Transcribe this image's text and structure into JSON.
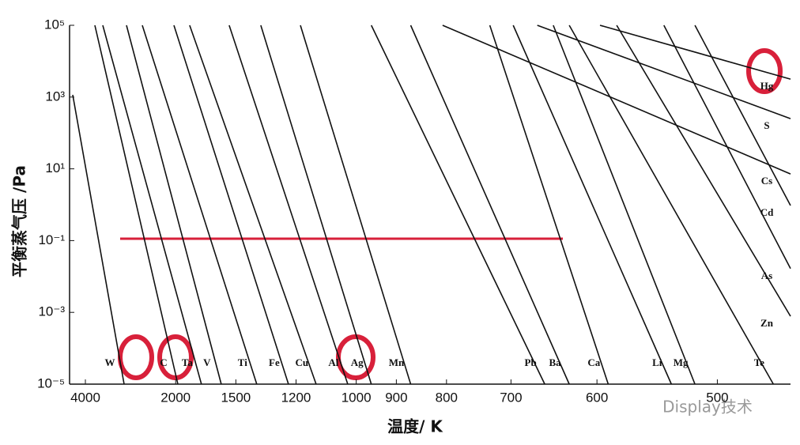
{
  "chart_data": {
    "type": "line",
    "x_label": "温度/ K",
    "y_label": "平衡蒸气压 /Pa",
    "watermark": "Display技术",
    "x_scale": "reciprocal",
    "y_scale": "log",
    "color": "#111111",
    "xlim": [
      4850,
      454
    ],
    "ylim": [
      1e-05,
      100000
    ],
    "xticks": [
      4000,
      2000,
      1500,
      1200,
      1000,
      900,
      800,
      700,
      600,
      500
    ],
    "yticks": [
      {
        "value": 100000,
        "label": "10⁵"
      },
      {
        "value": 1000,
        "label": "10³"
      },
      {
        "value": 10,
        "label": "10¹"
      },
      {
        "value": 0.1,
        "label": "10⁻¹"
      },
      {
        "value": 0.001,
        "label": "10⁻³"
      },
      {
        "value": 1e-05,
        "label": "10⁻⁵"
      }
    ],
    "series": [
      {
        "name": "W",
        "x": [
          4651,
          2800
        ],
        "values": [
          1150,
          1e-05
        ]
      },
      {
        "name": "C",
        "x": [
          3620,
          1976
        ],
        "values": [
          100000,
          1e-05
        ]
      },
      {
        "name": "Ta",
        "x": [
          3355,
          1750
        ],
        "values": [
          100000,
          1e-05
        ]
      },
      {
        "name": "V",
        "x": [
          2749,
          1597
        ],
        "values": [
          100000,
          1e-05
        ]
      },
      {
        "name": "Ti",
        "x": [
          2454,
          1380
        ],
        "values": [
          100000,
          1e-05
        ]
      },
      {
        "name": "Fe",
        "x": [
          2020,
          1231
        ],
        "values": [
          100000,
          1e-05
        ]
      },
      {
        "name": "Cu",
        "x": [
          1856,
          1125
        ],
        "values": [
          100000,
          1e-05
        ]
      },
      {
        "name": "Al",
        "x": [
          1543,
          1024
        ],
        "values": [
          100000,
          1e-05
        ]
      },
      {
        "name": "Ag",
        "x": [
          1359,
          960
        ],
        "values": [
          100000,
          1e-05
        ]
      },
      {
        "name": "Mn",
        "x": [
          1183,
          869
        ],
        "values": [
          100000,
          1e-05
        ]
      },
      {
        "name": "Pb",
        "x": [
          960,
          657
        ],
        "values": [
          100000,
          1e-05
        ]
      },
      {
        "name": "Ba",
        "x": [
          869,
          629
        ],
        "values": [
          100000,
          1e-05
        ]
      },
      {
        "name": "Ca",
        "x": [
          730,
          589
        ],
        "values": [
          100000,
          1e-05
        ]
      },
      {
        "name": "Li",
        "x": [
          697,
          534
        ],
        "values": [
          100000,
          1e-05
        ]
      },
      {
        "name": "Mg",
        "x": [
          647,
          516
        ],
        "values": [
          100000,
          1e-05
        ]
      },
      {
        "name": "Te",
        "x": [
          629,
          464
        ],
        "values": [
          100000,
          1e-05
        ]
      },
      {
        "name": "Zn",
        "x": [
          581,
          454
        ],
        "values": [
          100000,
          0.00078
        ]
      },
      {
        "name": "As",
        "x": [
          540,
          454
        ],
        "values": [
          100000,
          0.0166
        ]
      },
      {
        "name": "Cd",
        "x": [
          516,
          454
        ],
        "values": [
          100000,
          0.95
        ]
      },
      {
        "name": "Cs",
        "x": [
          807,
          454
        ],
        "values": [
          100000,
          7.2
        ]
      },
      {
        "name": "S",
        "x": [
          666,
          454
        ],
        "values": [
          100000,
          250
        ]
      },
      {
        "name": "Hg",
        "x": [
          597,
          454
        ],
        "values": [
          100000,
          3160
        ]
      }
    ]
  }
}
